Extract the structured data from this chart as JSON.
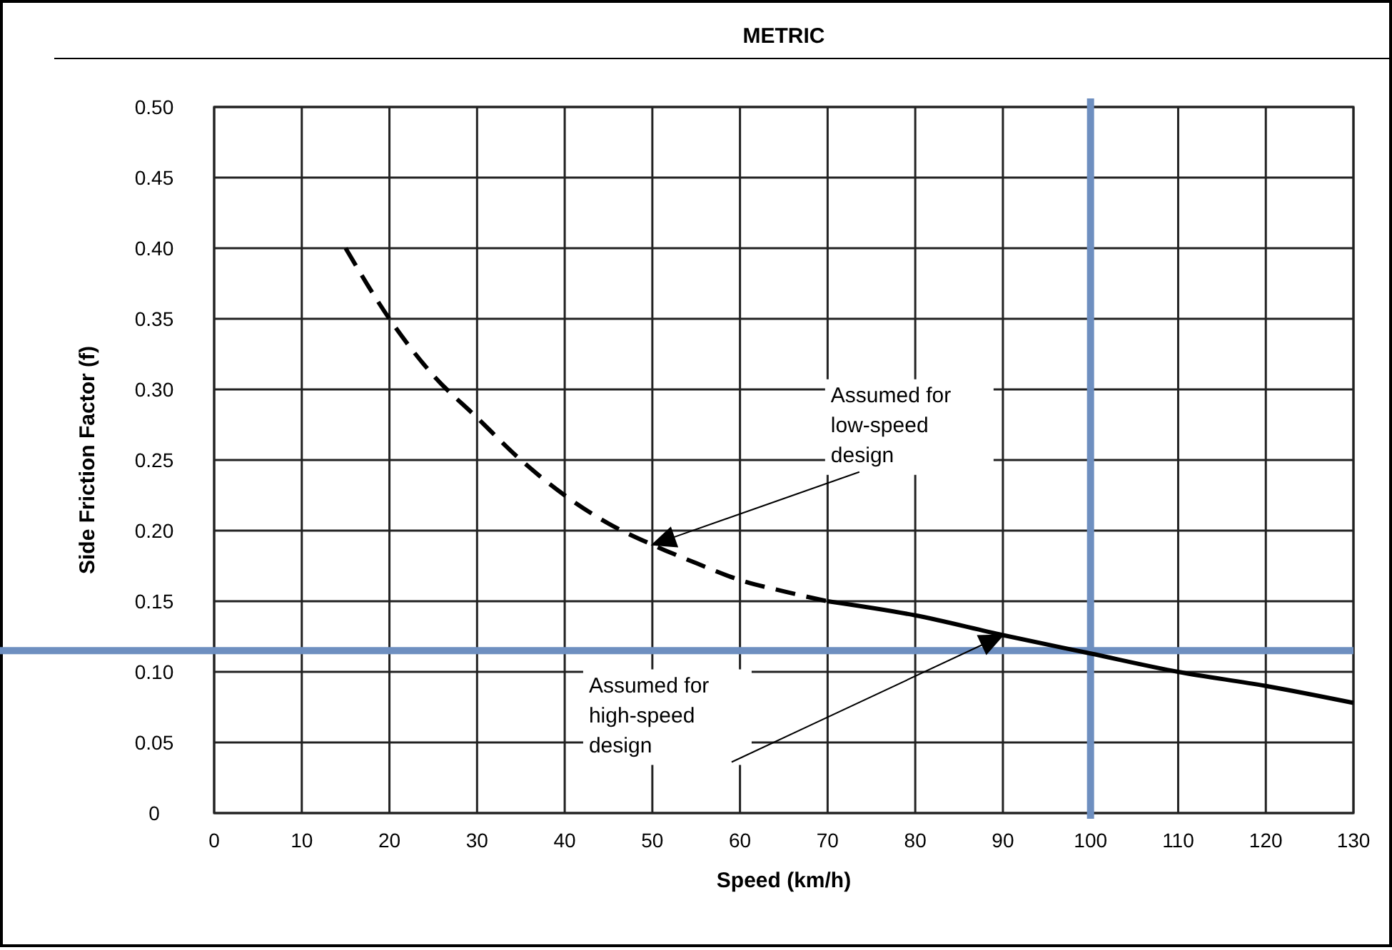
{
  "chart_data": {
    "type": "line",
    "title": "METRIC",
    "xlabel": "Speed (km/h)",
    "ylabel": "Side Friction Factor (f)",
    "xlim": [
      0,
      130
    ],
    "xticks": [
      0,
      10,
      20,
      30,
      40,
      50,
      60,
      70,
      80,
      90,
      100,
      110,
      120,
      130
    ],
    "ylim": [
      0,
      0.5
    ],
    "yticks": [
      0,
      {
        "value": 0.05,
        "label": "0.05"
      },
      {
        "value": 0.1,
        "label": "0.10"
      },
      {
        "value": 0.15,
        "label": "0.15"
      },
      {
        "value": 0.2,
        "label": "0.20"
      },
      {
        "value": 0.25,
        "label": "0.25"
      },
      {
        "value": 0.3,
        "label": "0.30"
      },
      {
        "value": 0.35,
        "label": "0.35"
      },
      {
        "value": 0.4,
        "label": "0.40"
      },
      {
        "value": 0.45,
        "label": "0.45"
      },
      {
        "value": 0.5,
        "label": "0.50"
      }
    ],
    "grid": true,
    "series": [
      {
        "color": "#000000",
        "line_style": "dashed",
        "x": [
          15,
          20,
          25,
          30,
          35,
          40,
          45,
          50,
          55,
          60,
          65,
          70
        ],
        "values": [
          0.4,
          0.35,
          0.31,
          0.28,
          0.25,
          0.225,
          0.205,
          0.19,
          0.177,
          0.165,
          0.157,
          0.15
        ]
      },
      {
        "color": "#000000",
        "line_style": "solid",
        "x": [
          70,
          80,
          90,
          100,
          110,
          120,
          130
        ],
        "values": [
          0.15,
          0.14,
          0.126,
          0.113,
          0.1,
          0.09,
          0.078
        ]
      }
    ],
    "ref_lines": [
      {
        "axis": "x",
        "value": 100,
        "color": "#6e8fc0"
      },
      {
        "axis": "y",
        "value": 0.115,
        "color": "#6e8fc0"
      }
    ],
    "annotations": [
      "Assumed for low-speed design",
      "Assumed for high-speed design"
    ]
  }
}
